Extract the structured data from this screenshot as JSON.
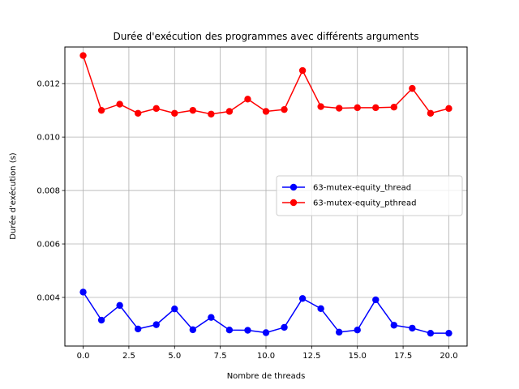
{
  "chart_data": {
    "type": "line",
    "title": "Durée d'exécution des programmes avec différents arguments",
    "xlabel": "Nombre de threads",
    "ylabel": "Durée d'exécution (s)",
    "xlim": [
      -1.0,
      21.0
    ],
    "ylim": [
      0.00218,
      0.01337
    ],
    "x_ticks": [
      0.0,
      2.5,
      5.0,
      7.5,
      10.0,
      12.5,
      15.0,
      17.5,
      20.0
    ],
    "x_tick_labels": [
      "0.0",
      "2.5",
      "5.0",
      "7.5",
      "10.0",
      "12.5",
      "15.0",
      "17.5",
      "20.0"
    ],
    "y_ticks": [
      0.004,
      0.006,
      0.008,
      0.01,
      0.012
    ],
    "y_tick_labels": [
      "0.004",
      "0.006",
      "0.008",
      "0.010",
      "0.012"
    ],
    "grid": true,
    "legend_position": "center-right",
    "x": [
      0,
      1,
      2,
      3,
      4,
      5,
      6,
      7,
      8,
      9,
      10,
      11,
      12,
      13,
      14,
      15,
      16,
      17,
      18,
      19,
      20
    ],
    "series": [
      {
        "name": "63-mutex-equity_thread",
        "color": "#0000ff",
        "marker": "circle",
        "values": [
          0.0042,
          0.00315,
          0.0037,
          0.00282,
          0.00298,
          0.00357,
          0.00279,
          0.00325,
          0.00278,
          0.00277,
          0.00268,
          0.00288,
          0.00396,
          0.00358,
          0.0027,
          0.00278,
          0.00391,
          0.00296,
          0.00285,
          0.00266,
          0.00266
        ]
      },
      {
        "name": "63-mutex-equity_pthread",
        "color": "#ff0000",
        "marker": "circle",
        "values": [
          0.01305,
          0.011,
          0.01123,
          0.01089,
          0.01107,
          0.01089,
          0.011,
          0.01086,
          0.01096,
          0.01142,
          0.01096,
          0.01103,
          0.01249,
          0.01114,
          0.01108,
          0.0111,
          0.0111,
          0.01112,
          0.01182,
          0.01089,
          0.01107
        ]
      }
    ]
  }
}
